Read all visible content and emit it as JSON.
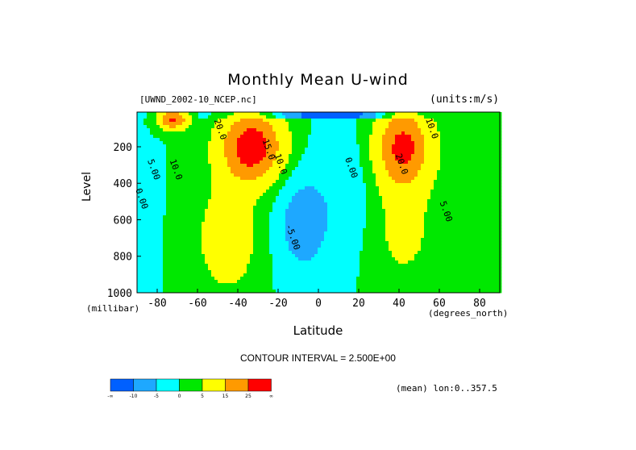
{
  "chart_data": {
    "type": "contour",
    "title": "Monthly Mean U-wind",
    "dataset_label": "[UWND_2002-10_NCEP.nc]",
    "units_label": "(units:m/s)",
    "xlabel": "Latitude",
    "x_unit": "(degrees_north)",
    "ylabel": "Level",
    "y_unit": "(millibar)",
    "xlim": [
      -90,
      90
    ],
    "ylim": [
      1000,
      10
    ],
    "x_ticks": [
      -80,
      -60,
      -40,
      -20,
      0,
      20,
      40,
      60,
      80
    ],
    "y_ticks": [
      200,
      400,
      600,
      800,
      1000
    ],
    "contour_interval_label": "CONTOUR INTERVAL = 2.500E+00",
    "mean_label": "(mean) lon:0..357.5",
    "colorbar": {
      "colors": [
        "#0060ff",
        "#1ea8ff",
        "#00ffff",
        "#00e800",
        "#ffff00",
        "#ff9a00",
        "#ff0000"
      ],
      "labels": [
        "-∞",
        "-10",
        "-5",
        "0",
        "5",
        "15",
        "25",
        "∞"
      ]
    },
    "jets": [
      {
        "lat": -33,
        "level": 200,
        "peak": 32
      },
      {
        "lat": -72,
        "level": 50,
        "peak": 27
      },
      {
        "lat": 42,
        "level": 200,
        "peak": 28
      }
    ],
    "contour_labels": [
      {
        "text": "20.0",
        "lat": -50,
        "level": 110
      },
      {
        "text": "10.0",
        "lat": -72,
        "level": 330
      },
      {
        "text": "5.00",
        "lat": -83,
        "level": 330
      },
      {
        "text": "0.00",
        "lat": -89,
        "level": 490
      },
      {
        "text": "15.0",
        "lat": -26,
        "level": 220
      },
      {
        "text": "10.0",
        "lat": -20,
        "level": 300
      },
      {
        "text": "0.00",
        "lat": 15,
        "level": 320
      },
      {
        "text": "-5.00",
        "lat": -14,
        "level": 700
      },
      {
        "text": "10.0",
        "lat": 55,
        "level": 105
      },
      {
        "text": "20.0",
        "lat": 40,
        "level": 300
      },
      {
        "text": "5.00",
        "lat": 62,
        "level": 560
      }
    ]
  }
}
